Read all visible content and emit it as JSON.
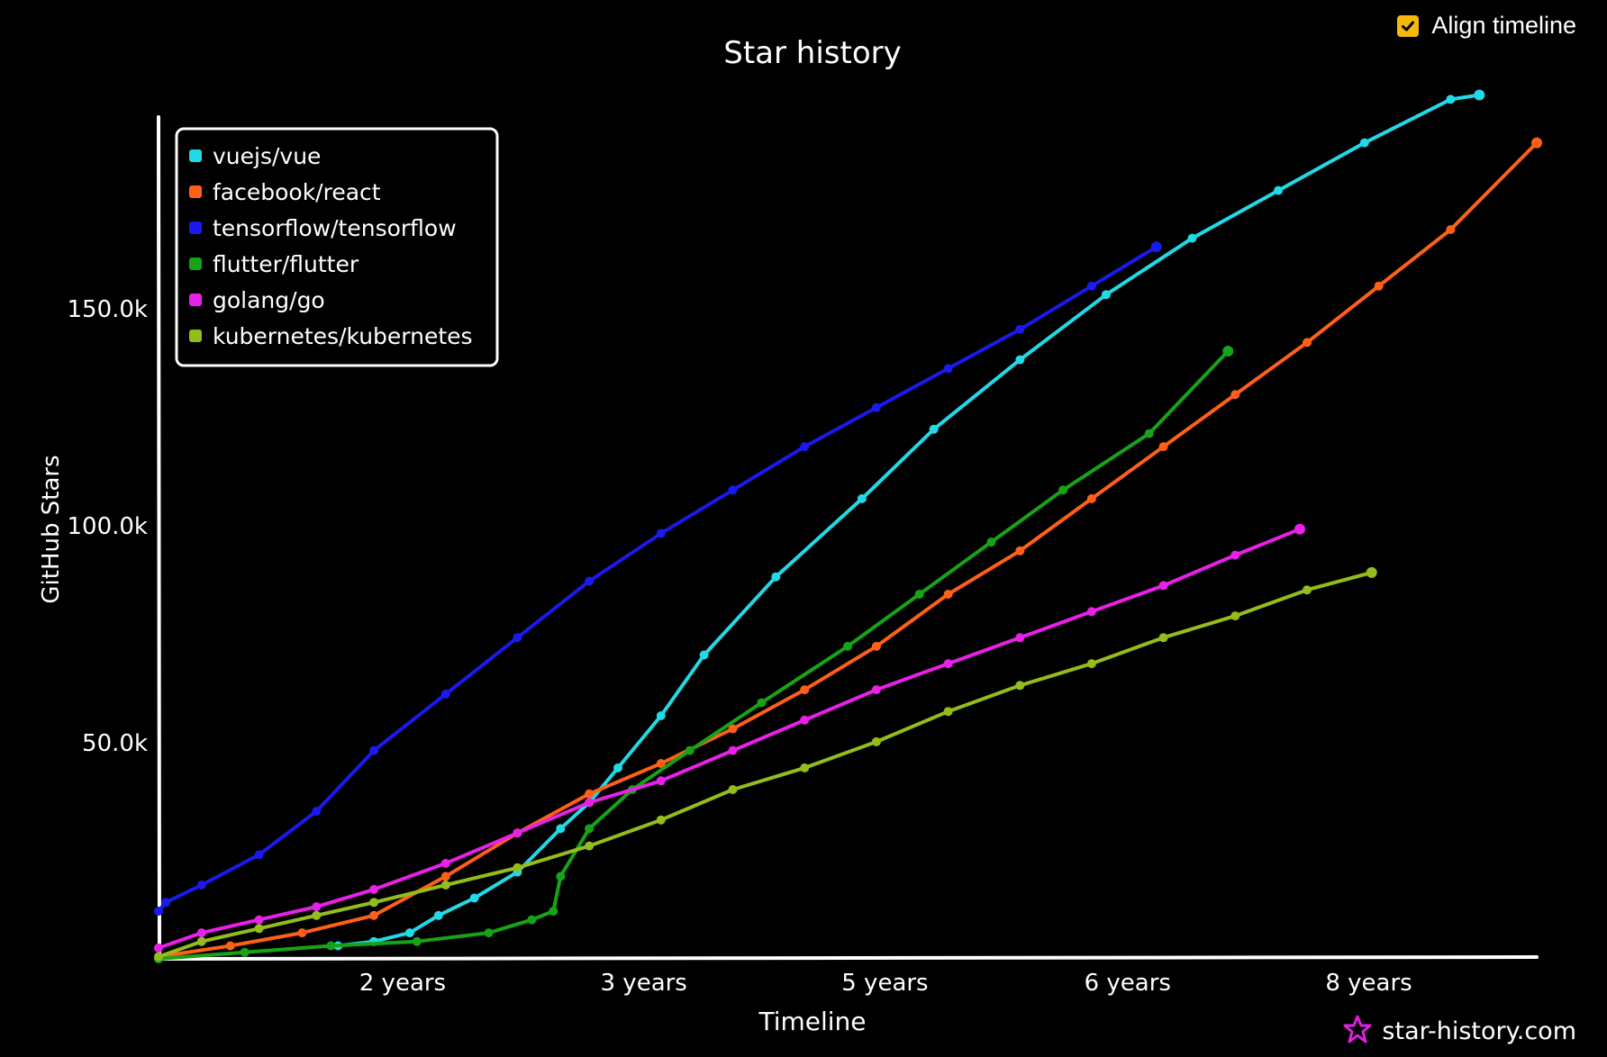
{
  "controls": {
    "align_timeline_label": "Align timeline",
    "align_timeline_checked": true
  },
  "brand": {
    "text": "star-history.com",
    "icon": "star-icon"
  },
  "colors": {
    "background": "#000000",
    "axis": "#ffffff",
    "checkbox": "#f5b90b",
    "brand_icon": "#e020e0"
  },
  "chart_data": {
    "type": "line",
    "title": "Star history",
    "xlabel": "Timeline",
    "ylabel": "GitHub Stars",
    "x_unit": "years since repository creation",
    "xlim": [
      0,
      9.6
    ],
    "ylim": [
      0,
      196000
    ],
    "x_ticks": [
      {
        "value": 1.7,
        "label": "2 years"
      },
      {
        "value": 3.38,
        "label": "3 years"
      },
      {
        "value": 5.06,
        "label": "5 years"
      },
      {
        "value": 6.75,
        "label": "6 years"
      },
      {
        "value": 8.43,
        "label": "8 years"
      }
    ],
    "y_ticks": [
      {
        "value": 50000,
        "label": "50.0k"
      },
      {
        "value": 100000,
        "label": "100.0k"
      },
      {
        "value": 150000,
        "label": "150.0k"
      }
    ],
    "legend_position": "top-left",
    "series": [
      {
        "name": "vuejs/vue",
        "color": "#22d9e6",
        "x": [
          1.25,
          1.5,
          1.75,
          1.95,
          2.2,
          2.5,
          2.8,
          3.0,
          3.2,
          3.5,
          3.8,
          4.3,
          4.9,
          5.4,
          6.0,
          6.6,
          7.2,
          7.8,
          8.4,
          9.0,
          9.2
        ],
        "y": [
          3000,
          4000,
          6000,
          10000,
          14000,
          20000,
          30000,
          36000,
          44000,
          56000,
          70000,
          88000,
          106000,
          122000,
          138000,
          153000,
          166000,
          177000,
          188000,
          198000,
          199000
        ]
      },
      {
        "name": "facebook/react",
        "color": "#ff6018",
        "x": [
          0,
          0.5,
          1.0,
          1.5,
          2.0,
          2.5,
          3.0,
          3.5,
          4.0,
          4.5,
          5.0,
          5.5,
          6.0,
          6.5,
          7.0,
          7.5,
          8.0,
          8.5,
          9.0,
          9.6
        ],
        "y": [
          500,
          3000,
          6000,
          10000,
          19000,
          29000,
          38000,
          45000,
          53000,
          62000,
          72000,
          84000,
          94000,
          106000,
          118000,
          130000,
          142000,
          155000,
          168000,
          188000
        ]
      },
      {
        "name": "tensorflow/tensorflow",
        "color": "#1a1aee",
        "x": [
          0,
          0.05,
          0.3,
          0.7,
          1.1,
          1.5,
          2.0,
          2.5,
          3.0,
          3.5,
          4.0,
          4.5,
          5.0,
          5.5,
          6.0,
          6.5,
          6.95
        ],
        "y": [
          11000,
          13000,
          17000,
          24000,
          34000,
          48000,
          61000,
          74000,
          87000,
          98000,
          108000,
          118000,
          127000,
          136000,
          145000,
          155000,
          164000
        ]
      },
      {
        "name": "flutter/flutter",
        "color": "#17a317",
        "x": [
          0,
          0.6,
          1.2,
          1.8,
          2.3,
          2.6,
          2.75,
          2.8,
          3.0,
          3.3,
          3.7,
          4.2,
          4.8,
          5.3,
          5.8,
          6.3,
          6.9,
          7.45
        ],
        "y": [
          0,
          1500,
          3000,
          4000,
          6000,
          9000,
          11000,
          19000,
          30000,
          39000,
          48000,
          59000,
          72000,
          84000,
          96000,
          108000,
          121000,
          140000
        ]
      },
      {
        "name": "golang/go",
        "color": "#e820e8",
        "x": [
          0,
          0.3,
          0.7,
          1.1,
          1.5,
          2.0,
          2.5,
          3.0,
          3.5,
          4.0,
          4.5,
          5.0,
          5.5,
          6.0,
          6.5,
          7.0,
          7.5,
          7.95
        ],
        "y": [
          2500,
          6000,
          9000,
          12000,
          16000,
          22000,
          29000,
          36000,
          41000,
          48000,
          55000,
          62000,
          68000,
          74000,
          80000,
          86000,
          93000,
          99000
        ]
      },
      {
        "name": "kubernetes/kubernetes",
        "color": "#94bd1c",
        "x": [
          0,
          0.3,
          0.7,
          1.1,
          1.5,
          2.0,
          2.5,
          3.0,
          3.5,
          4.0,
          4.5,
          5.0,
          5.5,
          6.0,
          6.5,
          7.0,
          7.5,
          8.0,
          8.45
        ],
        "y": [
          500,
          4000,
          7000,
          10000,
          13000,
          17000,
          21000,
          26000,
          32000,
          39000,
          44000,
          50000,
          57000,
          63000,
          68000,
          74000,
          79000,
          85000,
          89000
        ]
      }
    ]
  }
}
